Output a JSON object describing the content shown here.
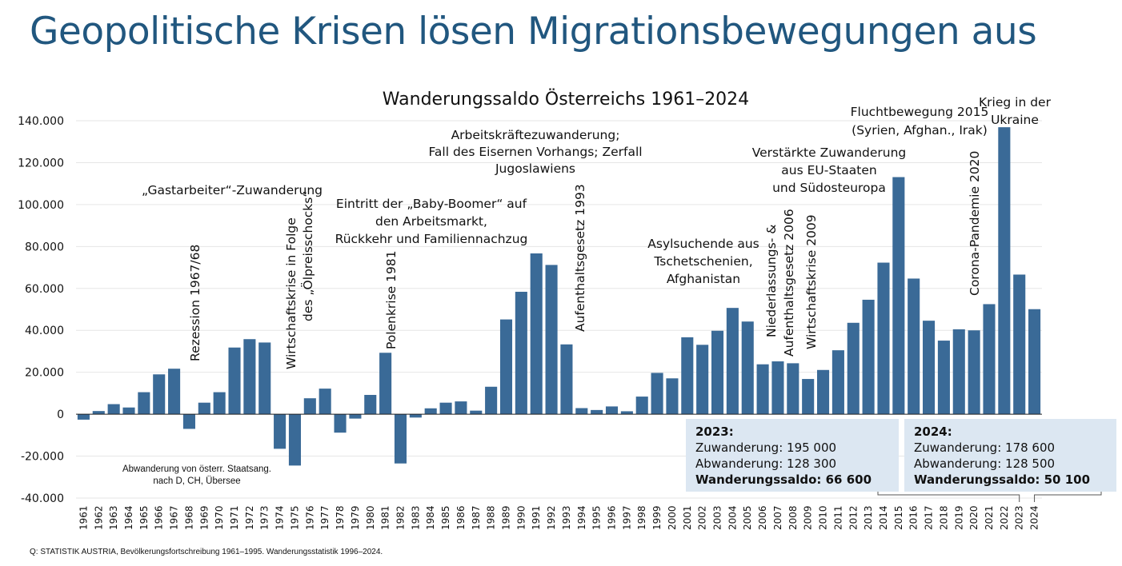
{
  "page": {
    "title": "Geopolitische Krisen lösen Migrationsbewegungen aus",
    "source": "Q: STATISTIK AUSTRIA, Bevölkerungsfortschreibung 1961–1995. Wanderungsstatistik 1996–2024."
  },
  "colors": {
    "title": "#21577f",
    "bar": "#3a6a97",
    "grid": "#e6e6e6",
    "box": "#dce7f2"
  },
  "chart_data": {
    "type": "bar",
    "title": "Wanderungssaldo Österreichs 1961–2024",
    "xlabel": "",
    "ylabel": "",
    "ylim": [
      -40000,
      140000
    ],
    "yticks": [
      -40000,
      -20000,
      0,
      20000,
      40000,
      60000,
      80000,
      100000,
      120000,
      140000
    ],
    "ytick_labels": [
      "-40.000",
      "-20.000",
      "0",
      "20.000",
      "40.000",
      "60.000",
      "80.000",
      "100.000",
      "120.000",
      "140.000"
    ],
    "grid": true,
    "legend": "none",
    "categories": [
      "1961",
      "1962",
      "1963",
      "1964",
      "1965",
      "1966",
      "1967",
      "1968",
      "1969",
      "1970",
      "1971",
      "1972",
      "1973",
      "1974",
      "1975",
      "1976",
      "1977",
      "1978",
      "1979",
      "1980",
      "1981",
      "1982",
      "1983",
      "1984",
      "1985",
      "1986",
      "1987",
      "1988",
      "1989",
      "1990",
      "1991",
      "1992",
      "1993",
      "1994",
      "1995",
      "1996",
      "1997",
      "1998",
      "1999",
      "2000",
      "2001",
      "2002",
      "2003",
      "2004",
      "2005",
      "2006",
      "2007",
      "2008",
      "2009",
      "2010",
      "2011",
      "2012",
      "2013",
      "2014",
      "2015",
      "2016",
      "2017",
      "2018",
      "2019",
      "2020",
      "2021",
      "2022",
      "2023",
      "2024"
    ],
    "values": [
      -2600,
      1500,
      4800,
      3200,
      10500,
      19000,
      21700,
      -7000,
      5500,
      10500,
      31800,
      35800,
      34200,
      -16500,
      -24500,
      7600,
      12200,
      -8800,
      -2100,
      9200,
      29300,
      -23500,
      -1600,
      2800,
      5500,
      6100,
      1700,
      13100,
      45200,
      58400,
      76700,
      71200,
      33300,
      2900,
      2000,
      3700,
      1400,
      8400,
      19700,
      17100,
      36700,
      33100,
      39800,
      50700,
      44200,
      23800,
      25200,
      24300,
      16800,
      21100,
      30500,
      43600,
      54600,
      72300,
      113100,
      64700,
      44600,
      35100,
      40500,
      40000,
      52500,
      136900,
      66600,
      50100
    ],
    "annotations": [
      {
        "name": "gastarbeiter",
        "text": [
          "„Gastarbeiter“-Zuwanderung"
        ],
        "orientation": "horizontal",
        "near": "1967"
      },
      {
        "name": "rezession",
        "text": [
          "Rezession 1967/68"
        ],
        "orientation": "vertical",
        "near": "1968"
      },
      {
        "name": "oelpreisschock",
        "text": [
          "Wirtschaftskrise in Folge",
          "des „Ölpreisschocks“"
        ],
        "orientation": "vertical",
        "near": "1975"
      },
      {
        "name": "baby-boomer",
        "text": [
          "Eintritt der „Baby-Boomer“ auf",
          "den Arbeitsmarkt,",
          "Rückkehr und Familiennachzug"
        ],
        "orientation": "horizontal",
        "near": "1980"
      },
      {
        "name": "polenkrise",
        "text": [
          "Polenkrise 1981"
        ],
        "orientation": "vertical",
        "near": "1981"
      },
      {
        "name": "eiserner-vorhang",
        "text": [
          "Arbeitskräftezuwanderung;",
          "Fall des Eisernen Vorhangs; Zerfall",
          "Jugoslawiens"
        ],
        "orientation": "horizontal",
        "near": "1990"
      },
      {
        "name": "aufenthaltsgesetz-1993",
        "text": [
          "Aufenthaltsgesetz 1993"
        ],
        "orientation": "vertical",
        "near": "1994"
      },
      {
        "name": "asylsuchende",
        "text": [
          "Asylsuchende aus",
          "Tschetschenien,",
          "Afghanistan"
        ],
        "orientation": "horizontal",
        "near": "2003"
      },
      {
        "name": "niederlassungsgesetz",
        "text": [
          "Niederlassungs- &",
          "Aufenthaltsgesetz  2006"
        ],
        "orientation": "vertical",
        "near": "2006"
      },
      {
        "name": "wirtschaftskrise-2009",
        "text": [
          "Wirtschaftskrise 2009"
        ],
        "orientation": "vertical",
        "near": "2009"
      },
      {
        "name": "eu-zuwanderung",
        "text": [
          "Verstärkte Zuwanderung",
          "aus EU-Staaten",
          "und Südosteuropa"
        ],
        "orientation": "horizontal",
        "near": "2011"
      },
      {
        "name": "fluchtbewegung",
        "text": [
          "Fluchtbewegung 2015",
          "(Syrien, Afghan., Irak)"
        ],
        "orientation": "horizontal",
        "near": "2015"
      },
      {
        "name": "corona",
        "text": [
          "Corona-Pandemie 2020"
        ],
        "orientation": "vertical",
        "near": "2020"
      },
      {
        "name": "ukraine",
        "text": [
          "Krieg in der",
          "Ukraine"
        ],
        "orientation": "horizontal",
        "near": "2022"
      },
      {
        "name": "abwanderung",
        "text": [
          "Abwanderung von österr. Staatsang.",
          "nach D, CH, Übersee"
        ],
        "orientation": "horizontal",
        "near": "1968"
      }
    ]
  },
  "info_boxes": [
    {
      "year_label": "2023:",
      "zuwanderung": "Zuwanderung: 195 000",
      "abwanderung": "Abwanderung: 128 300",
      "saldo_label": "Wanderungssaldo",
      "saldo_value": ": 66 600",
      "points_to": "2023"
    },
    {
      "year_label": "2024:",
      "zuwanderung": "Zuwanderung: 178 600",
      "abwanderung": "Abwanderung: 128 500",
      "saldo_label": "Wanderungssaldo",
      "saldo_value": ": 50 100",
      "points_to": "2024"
    }
  ]
}
